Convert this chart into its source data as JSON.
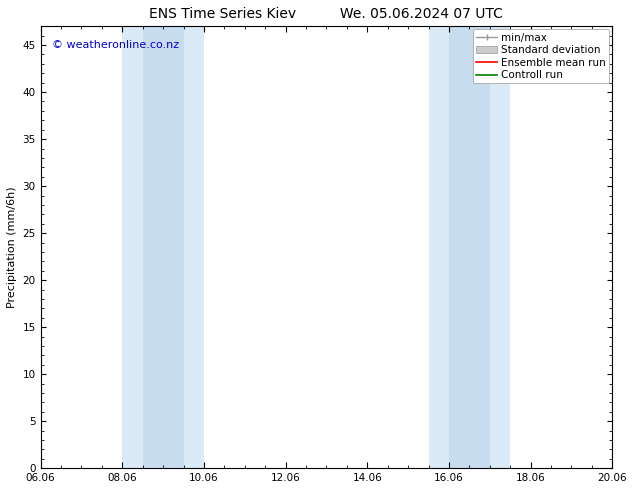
{
  "title_left": "ENS Time Series Kiev",
  "title_right": "We. 05.06.2024 07 UTC",
  "ylabel": "Precipitation (mm/6h)",
  "watermark": "© weatheronline.co.nz",
  "ylim": [
    0,
    47
  ],
  "yticks": [
    0,
    5,
    10,
    15,
    20,
    25,
    30,
    35,
    40,
    45
  ],
  "xticks_labels": [
    "06.06",
    "08.06",
    "10.06",
    "12.06",
    "14.06",
    "16.06",
    "18.06",
    "20.06"
  ],
  "xticks_positions": [
    0,
    2,
    4,
    6,
    8,
    10,
    12,
    14
  ],
  "xlim": [
    0,
    14
  ],
  "background_color": "#ffffff",
  "plot_bg_color": "#ffffff",
  "shaded_regions": [
    {
      "x_start": 2.0,
      "x_end": 2.5,
      "color": "#ddeeff"
    },
    {
      "x_start": 2.5,
      "x_end": 3.5,
      "color": "#ccddf0"
    },
    {
      "x_start": 3.5,
      "x_end": 4.0,
      "color": "#ddeeff"
    },
    {
      "x_start": 9.5,
      "x_end": 10.0,
      "color": "#ddeeff"
    },
    {
      "x_start": 10.0,
      "x_end": 11.0,
      "color": "#ccddf0"
    },
    {
      "x_start": 11.0,
      "x_end": 11.5,
      "color": "#ddeeff"
    }
  ],
  "legend_entries": [
    {
      "label": "min/max",
      "color": "#999999",
      "lw": 1.0
    },
    {
      "label": "Standard deviation",
      "color": "#cccccc",
      "lw": 5
    },
    {
      "label": "Ensemble mean run",
      "color": "#ff0000",
      "lw": 1.0
    },
    {
      "label": "Controll run",
      "color": "#008000",
      "lw": 1.0
    }
  ],
  "font_size_title": 10,
  "font_size_legend": 7.5,
  "font_size_tick": 7.5,
  "font_size_label": 8,
  "font_size_watermark": 8,
  "watermark_color": "#0000cc",
  "tick_color": "#000000",
  "spine_color": "#000000",
  "title_font_size": 10
}
